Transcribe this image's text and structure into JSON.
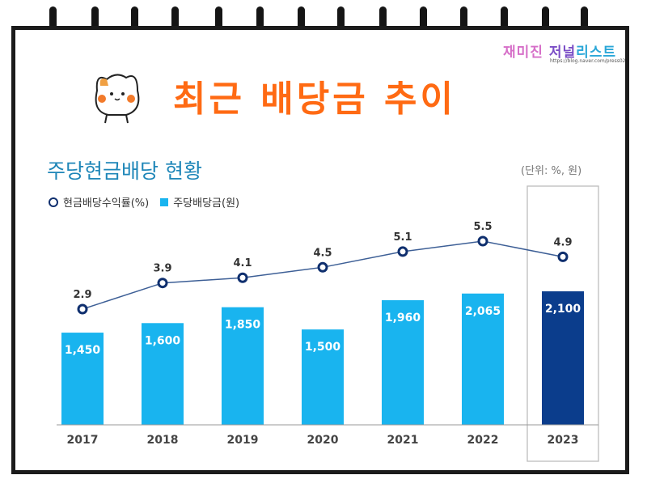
{
  "branding": {
    "text_a": "재미진",
    "text_b": "저널",
    "text_c": "리스트",
    "url": "https://blog.naver.com/press02"
  },
  "headline": "최근 배당금 추이",
  "chart_data": {
    "type": "bar",
    "title": "주당현금배당 현황",
    "unit": "(단위: %, 원)",
    "categories": [
      "2017",
      "2018",
      "2019",
      "2020",
      "2021",
      "2022",
      "2023"
    ],
    "series": [
      {
        "name": "주당배당금(원)",
        "type": "bar",
        "values": [
          1450,
          1600,
          1850,
          1500,
          1960,
          2065,
          2100
        ]
      },
      {
        "name": "현금배당수익률(%)",
        "type": "line",
        "values": [
          2.9,
          3.9,
          4.1,
          4.5,
          5.1,
          5.5,
          4.9
        ]
      }
    ],
    "highlight_category": "2023",
    "colors": {
      "bar": "#19b4ef",
      "bar_highlight": "#0b3d8c",
      "line": "#0f2f6e",
      "text": "#333333"
    }
  }
}
